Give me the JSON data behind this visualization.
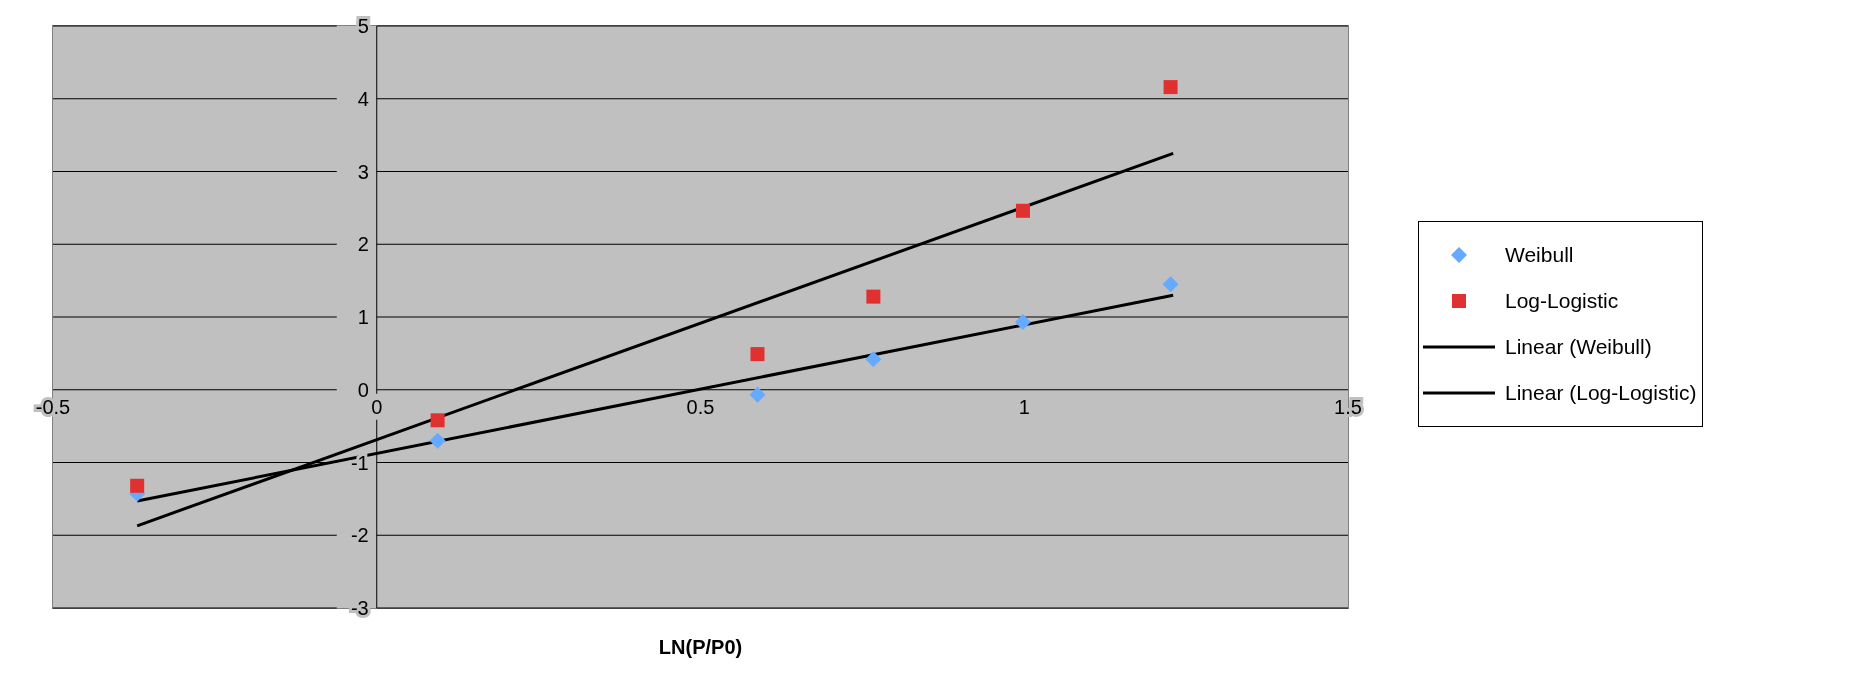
{
  "chart_data": {
    "type": "scatter",
    "xlabel": "LN(P/P0)",
    "xlim": [
      -0.5,
      1.5
    ],
    "xticks": [
      -0.5,
      0,
      0.5,
      1,
      1.5
    ],
    "ylim": [
      -3,
      5
    ],
    "yticks": [
      -3,
      -2,
      -1,
      0,
      1,
      2,
      3,
      4,
      5
    ],
    "grid": "y",
    "legend": "right",
    "series": [
      {
        "name": "Weibull",
        "marker": "diamond",
        "color": "#66aaff",
        "x": [
          -0.37,
          0.094,
          0.588,
          0.767,
          0.998,
          1.226
        ],
        "values": [
          -1.43,
          -0.7,
          -0.07,
          0.42,
          0.93,
          1.45
        ]
      },
      {
        "name": "Log-Logistic",
        "marker": "square",
        "color": "#e03030",
        "x": [
          -0.37,
          0.094,
          0.588,
          0.767,
          0.998,
          1.226
        ],
        "values": [
          -1.32,
          -0.42,
          0.49,
          1.28,
          2.46,
          4.16
        ]
      },
      {
        "name": "Linear (Weibull)",
        "type": "line",
        "color": "#000000",
        "x": [
          -0.37,
          1.23
        ],
        "values": [
          -1.53,
          1.3
        ]
      },
      {
        "name": "Linear (Log-Logistic)",
        "type": "line",
        "color": "#000000",
        "x": [
          -0.37,
          1.23
        ],
        "values": [
          -1.87,
          3.25
        ]
      }
    ]
  }
}
